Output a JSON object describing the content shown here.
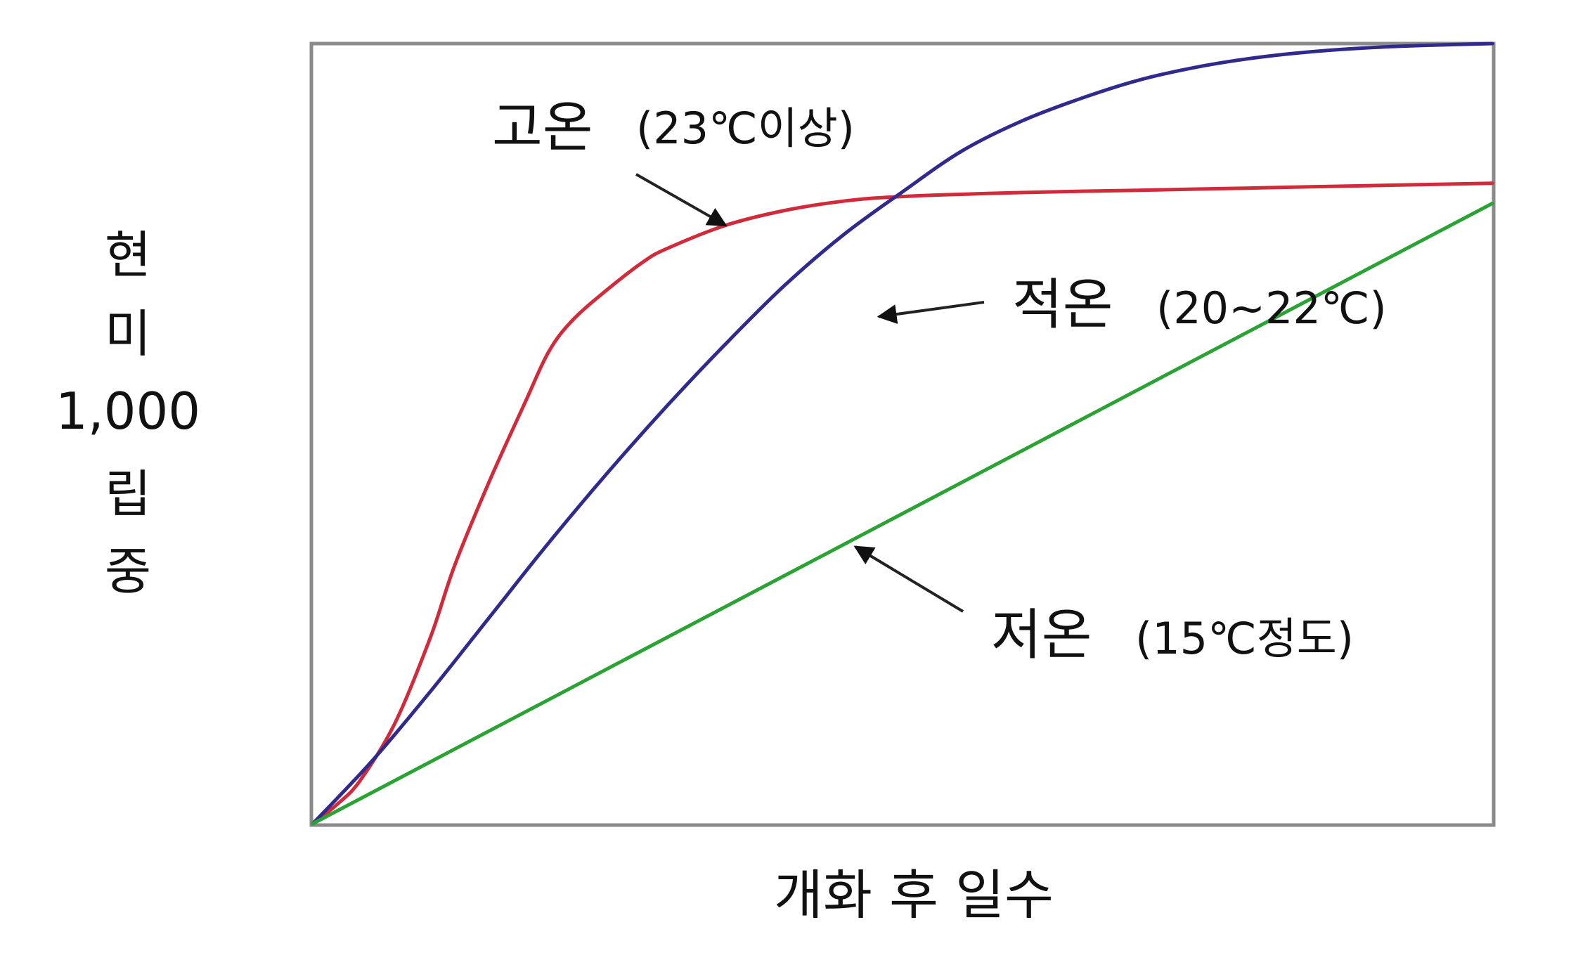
{
  "chart_data": {
    "type": "line",
    "title": "",
    "xlabel": "개화 후 일수",
    "ylabel": [
      "현",
      "미",
      "1,000",
      "립",
      "중"
    ],
    "xlim": [
      0,
      100
    ],
    "ylim": [
      0,
      100
    ],
    "grid": false,
    "legend": "none",
    "x_ticks": [],
    "y_ticks": [],
    "series": [
      {
        "name": "고온",
        "annotation": "(23℃이상)",
        "color": "#d12a3a",
        "points": [
          [
            0,
            0
          ],
          [
            2,
            2.4
          ],
          [
            4,
            5.5
          ],
          [
            7,
            13
          ],
          [
            10,
            24
          ],
          [
            12,
            33
          ],
          [
            15,
            44
          ],
          [
            18,
            54
          ],
          [
            20,
            60.5
          ],
          [
            22,
            64.5
          ],
          [
            25,
            68.5
          ],
          [
            28,
            72
          ],
          [
            30,
            73.7
          ],
          [
            35,
            76.7
          ],
          [
            40,
            78.6
          ],
          [
            45,
            79.8
          ],
          [
            50,
            80.4
          ],
          [
            60,
            80.9
          ],
          [
            70,
            81.2
          ],
          [
            80,
            81.5
          ],
          [
            90,
            81.8
          ],
          [
            100,
            82.1
          ]
        ]
      },
      {
        "name": "적온",
        "annotation": "(20~22℃)",
        "color": "#2f2a8c",
        "points": [
          [
            0,
            0
          ],
          [
            5,
            8
          ],
          [
            10,
            17
          ],
          [
            15,
            26.5
          ],
          [
            20,
            36
          ],
          [
            25,
            45
          ],
          [
            30,
            53.5
          ],
          [
            35,
            61.5
          ],
          [
            40,
            69
          ],
          [
            45,
            75.5
          ],
          [
            50,
            81
          ],
          [
            55,
            86.2
          ],
          [
            60,
            90
          ],
          [
            65,
            92.9
          ],
          [
            70,
            95.3
          ],
          [
            75,
            97
          ],
          [
            80,
            98.2
          ],
          [
            85,
            99
          ],
          [
            90,
            99.5
          ],
          [
            95,
            99.8
          ],
          [
            100,
            100
          ]
        ]
      },
      {
        "name": "저온",
        "annotation": "(15℃정도)",
        "color": "#2aa334",
        "points": [
          [
            0,
            0
          ],
          [
            100,
            79.5
          ]
        ]
      }
    ]
  },
  "annotations": [
    {
      "series": 0,
      "label": "고온",
      "sub": "(23℃이상)",
      "pointer_to": [
        35,
        76.7
      ]
    },
    {
      "series": 1,
      "label": "적온",
      "sub": "(20~22℃)",
      "pointer_to": [
        48,
        65
      ]
    },
    {
      "series": 2,
      "label": "저온",
      "sub": "(15℃정도)",
      "pointer_to": [
        46,
        35.5
      ]
    }
  ]
}
